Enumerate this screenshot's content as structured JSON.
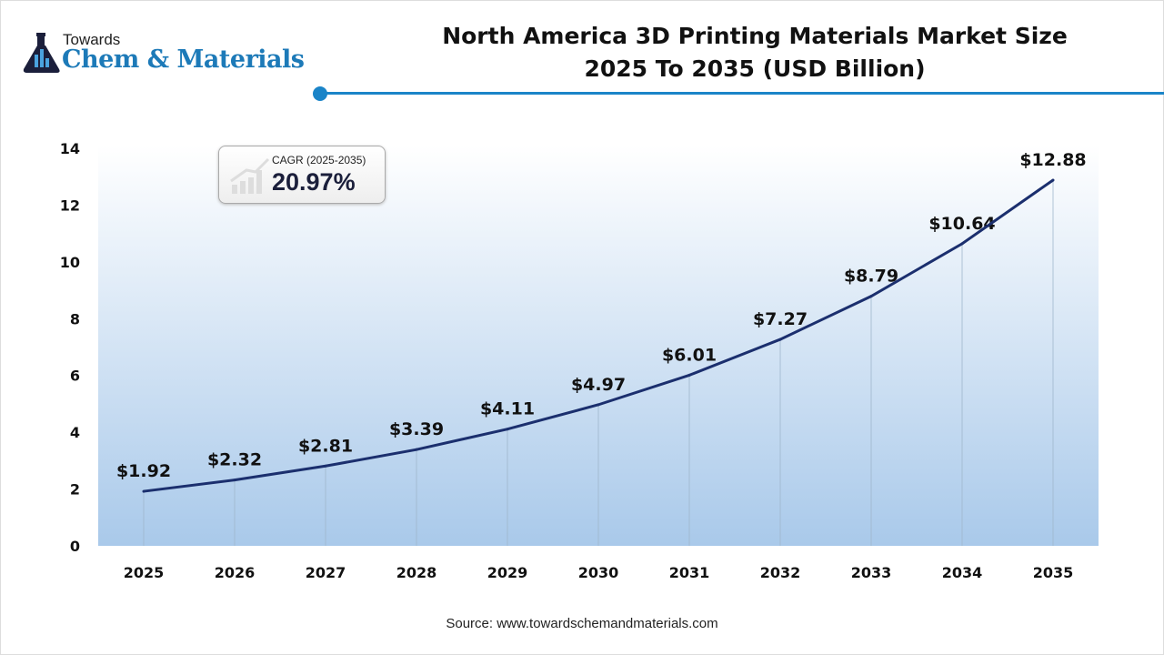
{
  "logo": {
    "line1": "Towards",
    "line2": "Chem & Materials"
  },
  "title": {
    "line1": "North America 3D Printing Materials Market Size",
    "line2": "2025 To 2035 (USD Billion)"
  },
  "cagr": {
    "label": "CAGR (2025-2035)",
    "value": "20.97%"
  },
  "source": "Source: www.towardschemandmaterials.com",
  "colors": {
    "line": "#1b2f6e",
    "accent": "#1a84c8",
    "fill_bottom": "#a9c9ea"
  },
  "chart_data": {
    "type": "area",
    "categories": [
      "2025",
      "2026",
      "2027",
      "2028",
      "2029",
      "2030",
      "2031",
      "2032",
      "2033",
      "2034",
      "2035"
    ],
    "values": [
      1.92,
      2.32,
      2.81,
      3.39,
      4.11,
      4.97,
      6.01,
      7.27,
      8.79,
      10.64,
      12.88
    ],
    "data_labels": [
      "$1.92",
      "$2.32",
      "$2.81",
      "$3.39",
      "$4.11",
      "$4.97",
      "$6.01",
      "$7.27",
      "$8.79",
      "$10.64",
      "$12.88"
    ],
    "yticks": [
      0,
      2,
      4,
      6,
      8,
      10,
      12,
      14
    ],
    "ylim": [
      0,
      14
    ],
    "grid": false,
    "legend": "none"
  }
}
